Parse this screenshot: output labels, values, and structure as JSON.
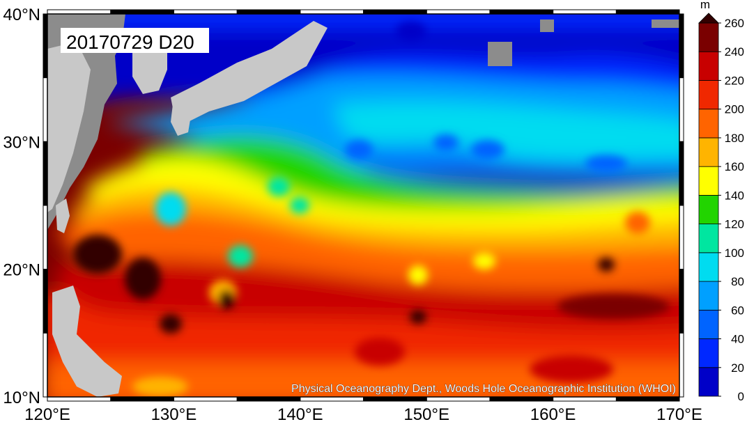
{
  "map": {
    "date_label": "20170729 D20",
    "credit": "Physical Oceanography Dept., Woods Hole Oceanographic Institution (WHOI)",
    "lon_ticks": [
      "120°E",
      "130°E",
      "140°E",
      "150°E",
      "160°E",
      "170°E"
    ],
    "lat_ticks": [
      "40°N",
      "30°N",
      "20°N",
      "10°N"
    ],
    "extent": {
      "lon_min": 120,
      "lon_max": 170,
      "lat_min": 10,
      "lat_max": 40
    },
    "land_color": "#8c8c8c",
    "land_highlight_color": "#c8c8c8"
  },
  "colorbar": {
    "unit": "m",
    "ticks": [
      "0",
      "20",
      "40",
      "60",
      "80",
      "100",
      "120",
      "140",
      "160",
      "180",
      "200",
      "220",
      "240",
      "260"
    ],
    "colors": [
      "#0000c8",
      "#0028ff",
      "#0064ff",
      "#00a0ff",
      "#00dcf0",
      "#00e6a0",
      "#22d400",
      "#ffff00",
      "#ffb400",
      "#ff6400",
      "#f02800",
      "#c80000",
      "#7a0000"
    ],
    "over_color": "#320000"
  }
}
